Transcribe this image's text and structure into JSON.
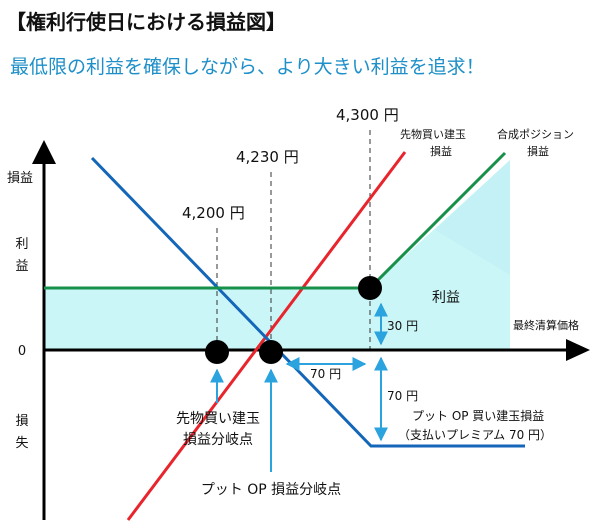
{
  "header": {
    "title": "【権利行使日における損益図】",
    "subtitle": "最低限の利益を確保しながら、より大きい利益を追求！"
  },
  "axis": {
    "y_top_label": "損益",
    "y_profit_label_1": "利",
    "y_profit_label_2": "益",
    "zero_label": "0",
    "y_loss_label_1": "損",
    "y_loss_label_2": "失",
    "x_label": "最終清算価格"
  },
  "prices": {
    "p4200": "4,200 円",
    "p4230": "4,230 円",
    "p4300": "4,300 円"
  },
  "lines": {
    "futures_1": "先物買い建玉",
    "futures_2": "損益",
    "combined_1": "合成ポジション",
    "combined_2": "損益",
    "put_1": "プット OP 買い建玉損益",
    "put_2": "（支払いプレミアム 70 円）"
  },
  "annotations": {
    "profit_area": "利益",
    "diff_30": "30 円",
    "diff_70_h": "70 円",
    "diff_70_v": "70 円",
    "futures_be_1": "先物買い建玉",
    "futures_be_2": "損益分岐点",
    "put_be": "プット OP 損益分岐点"
  },
  "colors": {
    "futures_line": "#e8242c",
    "put_line": "#1466b8",
    "combined_line": "#17914a",
    "profit_fill": "#cbf6f7",
    "annotation_arrow": "#2aa3df"
  }
}
